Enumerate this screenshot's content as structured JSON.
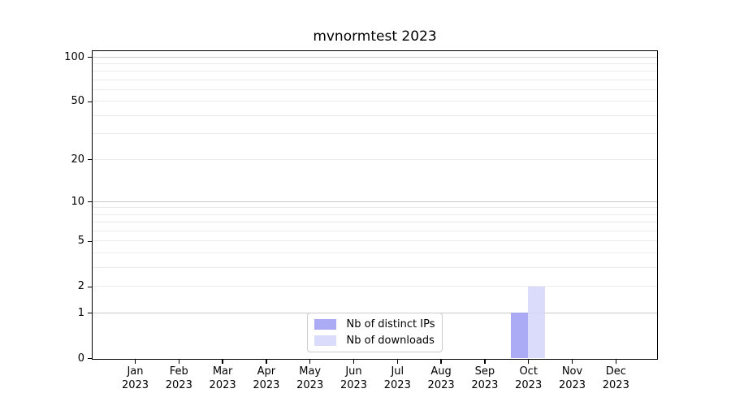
{
  "title": "mvnormtest 2023",
  "chart_data": {
    "type": "bar",
    "title": "mvnormtest 2023",
    "categories": [
      "Jan",
      "Feb",
      "Mar",
      "Apr",
      "May",
      "Jun",
      "Jul",
      "Aug",
      "Sep",
      "Oct",
      "Nov",
      "Dec"
    ],
    "category_year": "2023",
    "series": [
      {
        "name": "Nb of distinct IPs",
        "color": "#9b9bf3",
        "values": [
          0,
          0,
          0,
          0,
          0,
          0,
          0,
          0,
          0,
          1,
          0,
          0
        ]
      },
      {
        "name": "Nb of downloads",
        "color": "#d5d5fa",
        "values": [
          0,
          0,
          0,
          0,
          0,
          0,
          0,
          0,
          0,
          2,
          0,
          0
        ]
      }
    ],
    "xlabel": "",
    "ylabel": "",
    "y_scale": "log1p",
    "y_max": 100,
    "y_ticks": [
      0,
      1,
      2,
      5,
      10,
      20,
      50,
      100
    ],
    "minor_gridlines": [
      2,
      3,
      4,
      5,
      6,
      7,
      8,
      9,
      20,
      30,
      40,
      50,
      60,
      70,
      80,
      90
    ],
    "major_gridlines": [
      1,
      10,
      100
    ],
    "grid": true,
    "legend_position": "bottom-center"
  },
  "colors": {
    "background": "#ffffff",
    "axis": "#000000",
    "grid_minor": "#ebebeb",
    "grid_major": "#c9c9c9",
    "bar_distinct_ips": "#9b9bf3",
    "bar_downloads": "#d5d5fa",
    "legend_border": "#cccccc"
  }
}
